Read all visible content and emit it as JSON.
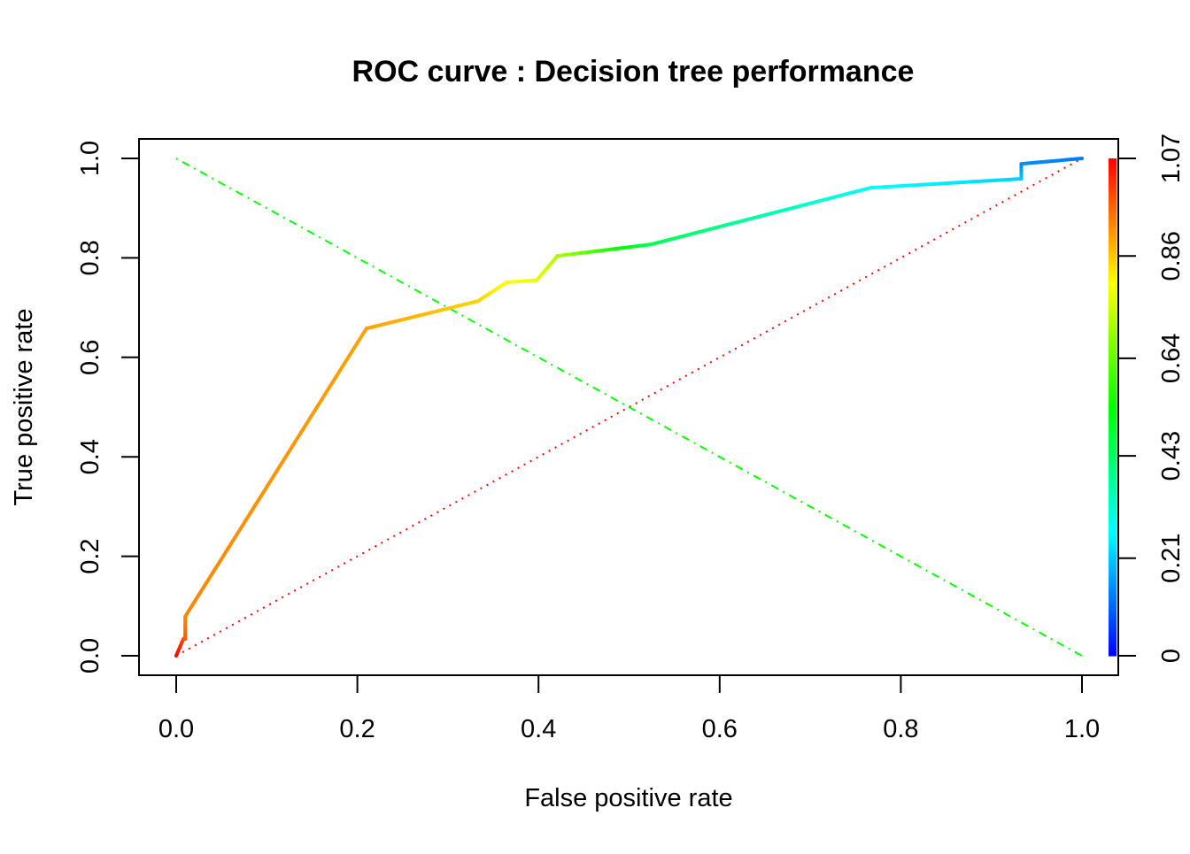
{
  "chart_data": {
    "type": "line",
    "title": "ROC curve : Decision tree performance",
    "xlabel": "False positive rate",
    "ylabel": "True positive rate",
    "xlim": [
      0,
      1
    ],
    "ylim": [
      0,
      1
    ],
    "x_ticks": [
      "0.0",
      "0.2",
      "0.4",
      "0.6",
      "0.8",
      "1.0"
    ],
    "y_ticks": [
      "0.0",
      "0.2",
      "0.4",
      "0.6",
      "0.8",
      "1.0"
    ],
    "grid": false,
    "colorize": {
      "quantity": "cutoff",
      "range": [
        0,
        1.07
      ],
      "ticks": [
        "0",
        "0.21",
        "0.43",
        "0.64",
        "0.86",
        "1.07"
      ],
      "low_color": "#0000ff",
      "high_color": "#ff0000"
    },
    "roc_points": [
      {
        "fpr": 0,
        "tpr": 0,
        "cutoff": 1.07
      },
      {
        "fpr": 0.008,
        "tpr": 0.034,
        "cutoff": 1.0
      },
      {
        "fpr": 0.01,
        "tpr": 0.034,
        "cutoff": 0.98
      },
      {
        "fpr": 0.01,
        "tpr": 0.079,
        "cutoff": 0.93
      },
      {
        "fpr": 0.21,
        "tpr": 0.658,
        "cutoff": 0.9
      },
      {
        "fpr": 0.333,
        "tpr": 0.713,
        "cutoff": 0.85
      },
      {
        "fpr": 0.365,
        "tpr": 0.751,
        "cutoff": 0.8
      },
      {
        "fpr": 0.398,
        "tpr": 0.755,
        "cutoff": 0.78
      },
      {
        "fpr": 0.421,
        "tpr": 0.804,
        "cutoff": 0.72
      },
      {
        "fpr": 0.524,
        "tpr": 0.827,
        "cutoff": 0.45
      },
      {
        "fpr": 0.767,
        "tpr": 0.941,
        "cutoff": 0.27
      },
      {
        "fpr": 0.933,
        "tpr": 0.959,
        "cutoff": 0.22
      },
      {
        "fpr": 0.933,
        "tpr": 0.989,
        "cutoff": 0.15
      },
      {
        "fpr": 1,
        "tpr": 1,
        "cutoff": 0.13
      }
    ],
    "reference_lines": [
      {
        "from": [
          0,
          0
        ],
        "to": [
          1,
          1
        ],
        "color": "#ff0000",
        "style": "dotted"
      },
      {
        "from": [
          0,
          1
        ],
        "to": [
          1,
          0
        ],
        "color": "#00ff00",
        "style": "dotdash"
      }
    ]
  }
}
